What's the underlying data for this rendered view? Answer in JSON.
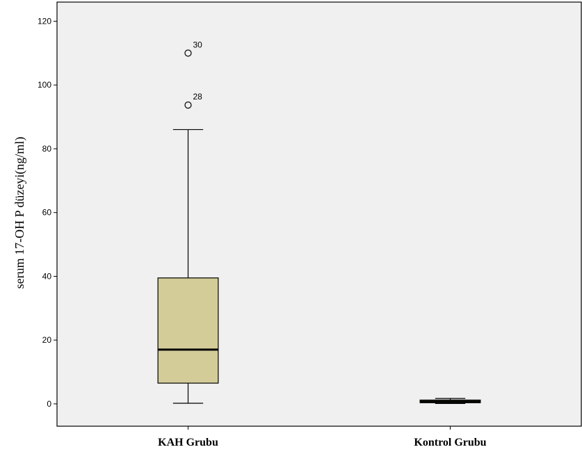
{
  "chart_data": {
    "type": "boxplot",
    "ylabel": "serum 17-OH P düzeyi(ng/ml)",
    "xlabel": "",
    "ylim": [
      -7,
      126
    ],
    "yticks": [
      0,
      20,
      40,
      60,
      80,
      100,
      120
    ],
    "ytick_labels": [
      "0",
      "20",
      "40",
      "60",
      "80",
      "100",
      "120"
    ],
    "categories": [
      "KAH Grubu",
      "Kontrol Grubu"
    ],
    "boxes": [
      {
        "category": "KAH Grubu",
        "min": 0.2,
        "q1": 6.5,
        "median": 17,
        "q3": 39.5,
        "max": 86,
        "outliers": [
          {
            "value": 110,
            "label": "30"
          },
          {
            "value": 93.7,
            "label": "28"
          }
        ]
      },
      {
        "category": "Kontrol Grubu",
        "min": 0.1,
        "q1": 0.35,
        "median": 0.7,
        "q3": 1.2,
        "max": 1.7,
        "outliers": []
      }
    ],
    "box_color": "#d4cc98",
    "background_color": "#f0f0f0",
    "grid": false,
    "legend": "none"
  }
}
